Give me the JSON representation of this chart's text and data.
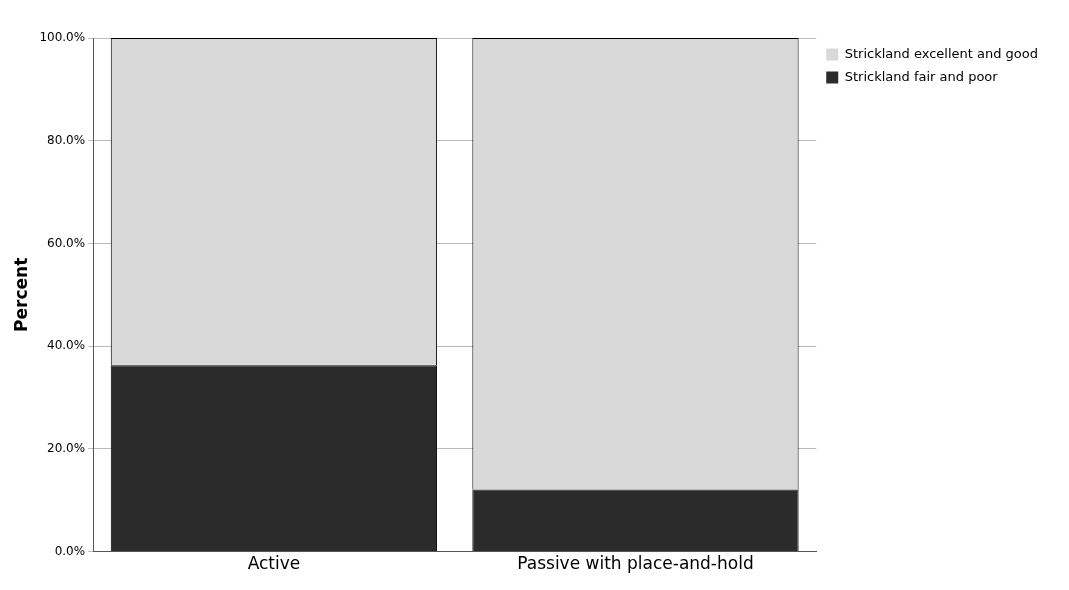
{
  "chart_data": {
    "type": "bar",
    "stacked": true,
    "ylabel": "Percent",
    "categories": [
      "Active",
      "Passive with place-and-hold"
    ],
    "series": [
      {
        "name": "Strickland fair and poor",
        "color": "#2b2b2b",
        "values": [
          36.3,
          12.1
        ]
      },
      {
        "name": "Strickland excellent and good",
        "color": "#d9d9d9",
        "values": [
          63.7,
          87.9
        ]
      }
    ],
    "ylim": [
      0,
      100
    ],
    "yticks": [
      {
        "value": 0,
        "label": "0.0%"
      },
      {
        "value": 20,
        "label": "20.0%"
      },
      {
        "value": 40,
        "label": "40.0%"
      },
      {
        "value": 60,
        "label": "60.0%"
      },
      {
        "value": 80,
        "label": "80.0%"
      },
      {
        "value": 100,
        "label": "100.0%"
      }
    ],
    "grid": "y",
    "legend": "top right"
  }
}
